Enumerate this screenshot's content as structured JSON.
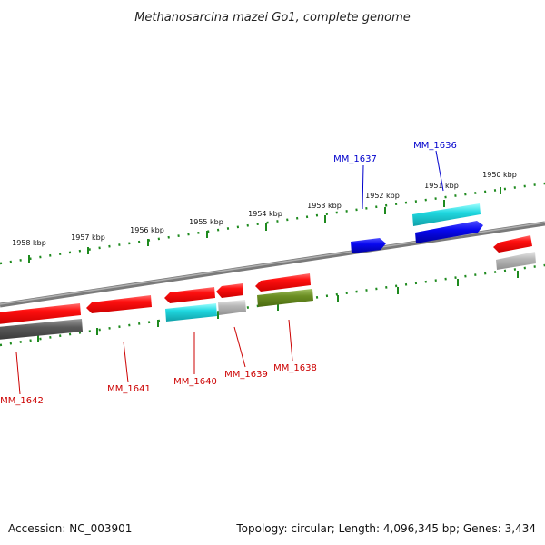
{
  "title": "Methanosarcina mazei Go1, complete genome",
  "footer": {
    "accession": "Accession: NC_003901",
    "summary": "Topology: circular; Length: 4,096,345 bp; Genes: 3,434"
  },
  "kbp_ticks": [
    "1958 kbp",
    "1957 kbp",
    "1956 kbp",
    "1955 kbp",
    "1954 kbp",
    "1953 kbp",
    "1952 kbp",
    "1951 kbp",
    "1950 kbp"
  ],
  "genes": [
    {
      "id": "MM_1637",
      "color": "#0000cc",
      "strand": "forward"
    },
    {
      "id": "MM_1636",
      "color": "#0000cc",
      "strand": "forward"
    },
    {
      "id": "MM_1642",
      "color": "#cc0000",
      "strand": "reverse"
    },
    {
      "id": "MM_1641",
      "color": "#cc0000",
      "strand": "reverse"
    },
    {
      "id": "MM_1640",
      "color": "#cc0000",
      "strand": "reverse"
    },
    {
      "id": "MM_1639",
      "color": "#cc0000",
      "strand": "reverse"
    },
    {
      "id": "MM_1638",
      "color": "#cc0000",
      "strand": "reverse"
    }
  ],
  "colors": {
    "red": "#ff1a1a",
    "blue": "#1010e8",
    "cyan": "#22d4dc",
    "olive": "#6b8e23",
    "grey_dark": "#555555",
    "grey_light": "#b5b5b5",
    "tick_green": "#1e8a1e",
    "backbone": "#8a8a8a"
  }
}
